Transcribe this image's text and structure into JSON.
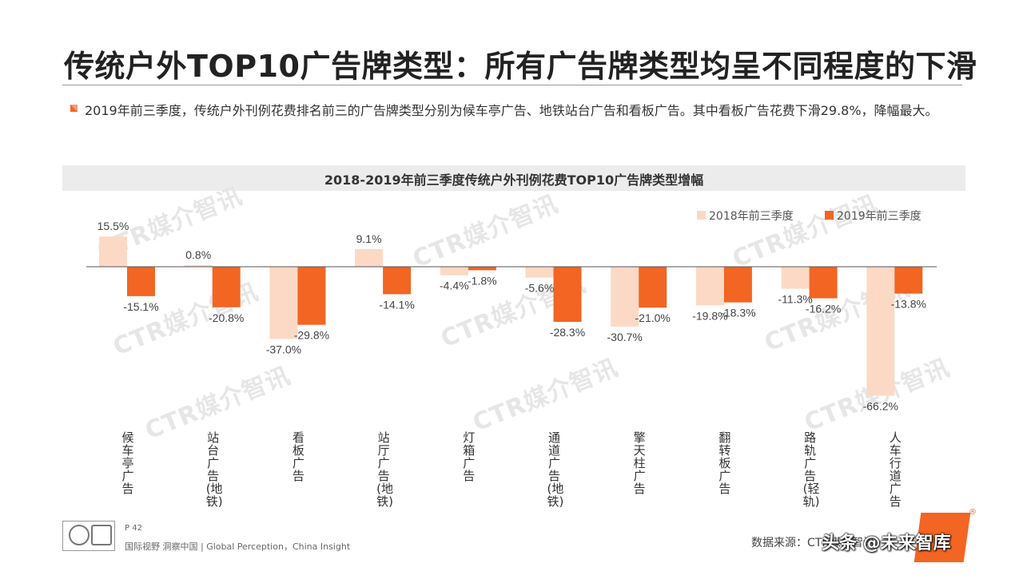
{
  "page": {
    "title": "传统户外TOP10广告牌类型：所有广告牌类型均呈不同程度的下滑",
    "summary": "2019年前三季度，传统户外刊例花费排名前三的广告牌类型分别为候车亭广告、地铁站台广告和看板广告。其中看板广告花费下滑29.8%，降幅最大。",
    "watermark": "CTR媒介智讯",
    "page_number": "P 42",
    "footer_text": "国际视野 洞察中国 | Global Perception，China Insight",
    "source": "数据来源：CTR媒介智讯",
    "stamp": "头条 @未来智库",
    "reg_mark": "®"
  },
  "chart_data": {
    "type": "bar",
    "title": "2018-2019年前三季度传统户外刊例花费TOP10广告牌类型增幅",
    "categories": [
      "候车亭广告",
      "站台广告(地铁)",
      "看板广告",
      "站厅广告(地铁)",
      "灯箱广告",
      "通道广告(地铁)",
      "擎天柱广告",
      "翻转板广告",
      "路轨广告(轻轨)",
      "人车行道广告"
    ],
    "series": [
      {
        "name": "2018年前三季度",
        "color": "#fcd9c4",
        "values": [
          15.5,
          0.8,
          -37.0,
          9.1,
          -4.4,
          -5.6,
          -30.7,
          -19.8,
          -11.3,
          -66.2
        ]
      },
      {
        "name": "2019年前三季度",
        "color": "#f26522",
        "values": [
          -15.1,
          -20.8,
          -29.8,
          -14.1,
          -1.8,
          -28.3,
          -21.0,
          -18.3,
          -16.2,
          -13.8
        ]
      }
    ],
    "value_suffix": "%",
    "legend_position": "top-right",
    "grid": false
  }
}
